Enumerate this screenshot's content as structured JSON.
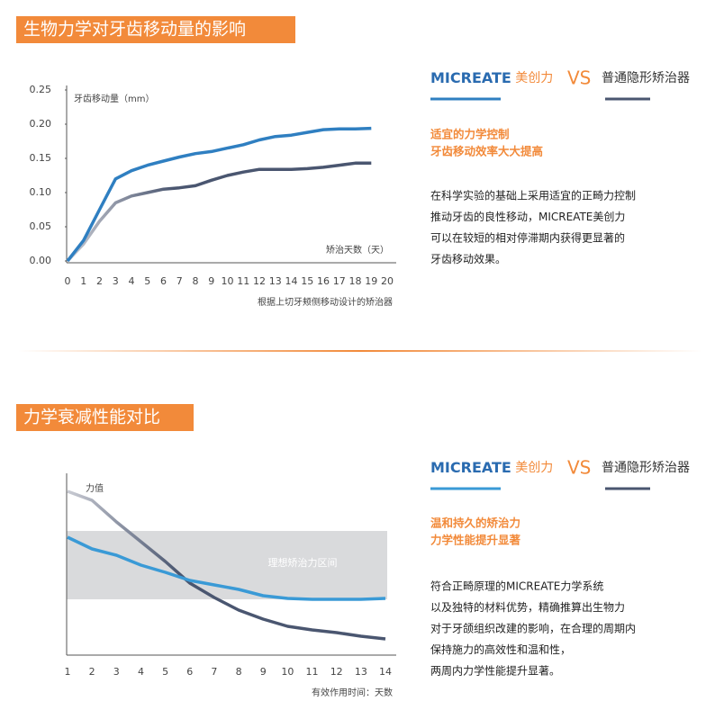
{
  "chart_data": [
    {
      "type": "line",
      "title": "生物力学对牙齿移动量的影响",
      "ylabel": "牙齿移动量（mm）",
      "xlabel": "矫治天数（天）",
      "note": "根据上切牙颊侧移动设计的矫治器",
      "x": [
        0,
        1,
        2,
        3,
        4,
        5,
        6,
        7,
        8,
        9,
        10,
        11,
        12,
        13,
        14,
        15,
        16,
        17,
        18,
        19
      ],
      "xlim": [
        0,
        20
      ],
      "xticks": [
        0,
        1,
        2,
        3,
        4,
        5,
        6,
        7,
        8,
        9,
        10,
        11,
        12,
        13,
        14,
        15,
        16,
        17,
        18,
        19,
        20
      ],
      "ylim": [
        0,
        0.25
      ],
      "yticks": [
        {
          "value": 0,
          "label": "0.00"
        },
        0.05,
        {
          "value": 0.1,
          "label": "0.10"
        },
        0.15,
        {
          "value": 0.2,
          "label": "0.20"
        },
        0.25
      ],
      "series": [
        {
          "name": "MICREATE 美创力",
          "color": "#2f7fc1",
          "values": [
            0,
            0.03,
            0.075,
            0.12,
            0.132,
            0.14,
            0.146,
            0.152,
            0.157,
            0.16,
            0.165,
            0.17,
            0.177,
            0.182,
            0.184,
            0.188,
            0.192,
            0.193,
            0.193,
            0.194
          ]
        },
        {
          "name": "普通隐形矫治器",
          "color": "#4a5670",
          "values": [
            0,
            0.025,
            0.058,
            0.085,
            0.095,
            0.1,
            0.105,
            0.107,
            0.11,
            0.118,
            0.125,
            0.13,
            0.134,
            0.134,
            0.134,
            0.135,
            0.137,
            0.14,
            0.143,
            0.143
          ]
        }
      ]
    },
    {
      "type": "line",
      "title": "力学衰减性能对比",
      "ylabel": "力值",
      "xlabel": "有效作用时间：天数",
      "band_label": "理想矫治力区间",
      "band": [
        31,
        69
      ],
      "x": [
        1,
        2,
        3,
        4,
        5,
        6,
        7,
        8,
        9,
        10,
        11,
        12,
        13,
        14
      ],
      "xlim": [
        1,
        14
      ],
      "xticks": [
        1,
        2,
        3,
        4,
        5,
        6,
        7,
        8,
        9,
        10,
        11,
        12,
        13,
        14
      ],
      "ylim": [
        0,
        100
      ],
      "series": [
        {
          "name": "MICREATE 美创力",
          "color": "#3a9ad6",
          "values": [
            65.5,
            59,
            55.5,
            50,
            46,
            41.5,
            39,
            36.5,
            33,
            31.5,
            31,
            31,
            31,
            31.5
          ]
        },
        {
          "name": "普通隐形矫治器",
          "color": "#4a5670",
          "values": [
            91,
            86,
            74,
            63,
            52,
            40,
            32,
            25,
            20,
            16,
            14,
            12.5,
            10.5,
            9
          ]
        }
      ]
    }
  ],
  "panels": [
    {
      "vs": "VS",
      "headline": [
        "适宜的力学控制",
        "牙齿移动效率大大提高"
      ],
      "body": [
        "在科学实验的基础上采用适宜的正畸力控制",
        "推动牙齿的良性移动，MICREATE美创力",
        "可以在较短的相对停滞期内获得更显著的",
        "牙齿移动效果。"
      ]
    },
    {
      "vs": "VS",
      "headline": [
        "温和持久的矫治力",
        "力学性能提升显著"
      ],
      "body": [
        "符合正畸原理的MICREATE力学系统",
        "以及独特的材料优势，精确推算出生物力",
        "对于牙颌组织改建的影响，在合理的周期内",
        "保持施力的高效性和温和性，",
        "两周内力学性能提升显著。"
      ]
    }
  ]
}
